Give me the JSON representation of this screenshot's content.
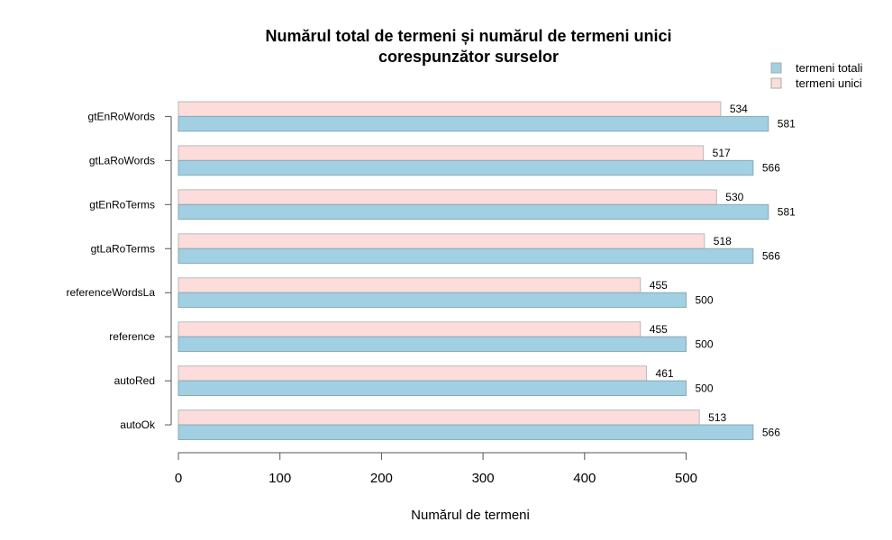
{
  "chart_data": {
    "type": "bar",
    "orientation": "horizontal",
    "title": "Numărul total de termeni și numărul de termeni unici\ncorespunzător surselor",
    "xlabel": "Numărul de termeni",
    "ylabel": "",
    "xlim": [
      0,
      581
    ],
    "x_ticks": [
      0,
      100,
      200,
      300,
      400,
      500
    ],
    "grid": false,
    "legend_position": "top-right",
    "categories": [
      "gtEnRoWords",
      "gtLaRoWords",
      "gtEnRoTerms",
      "gtLaRoTerms",
      "referenceWordsLa",
      "reference",
      "autoRed",
      "autoOk"
    ],
    "series": [
      {
        "name": "termeni totali",
        "color": "#a1d0e2",
        "values": [
          581,
          566,
          581,
          566,
          500,
          500,
          500,
          566
        ]
      },
      {
        "name": "termeni unici",
        "color": "#fddcdc",
        "values": [
          534,
          517,
          530,
          518,
          455,
          455,
          461,
          513
        ]
      }
    ]
  }
}
